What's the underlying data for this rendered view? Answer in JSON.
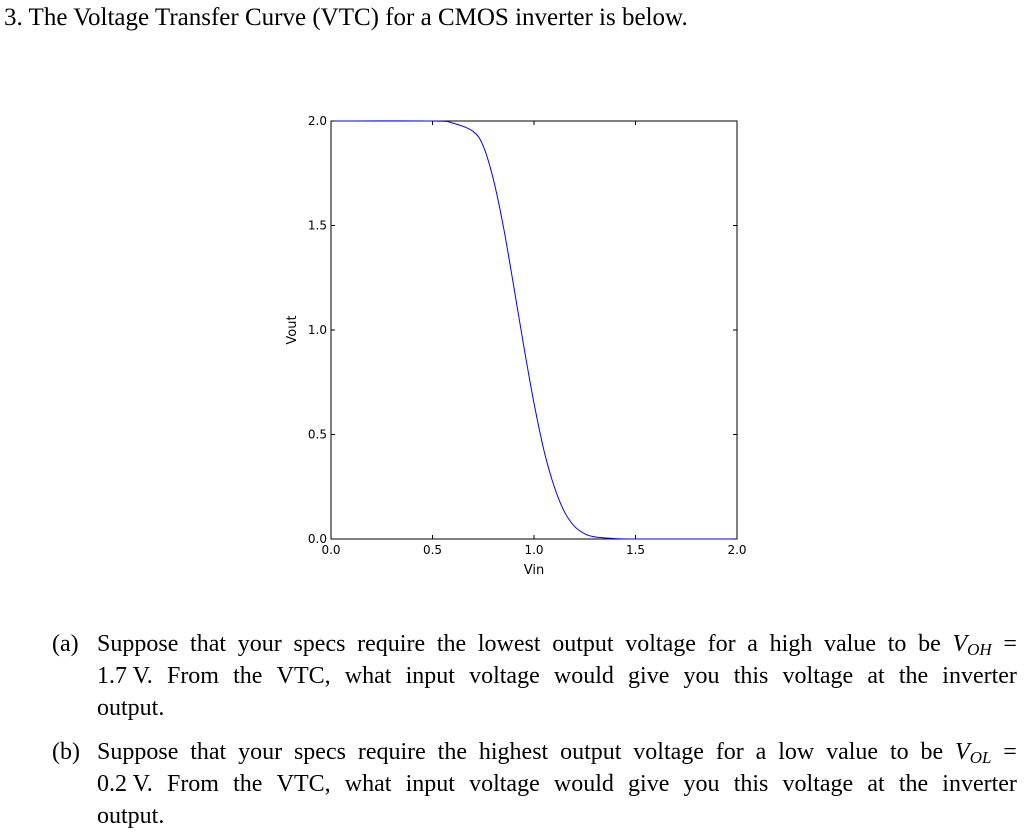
{
  "heading": "3. The Voltage Transfer Curve (VTC) for a CMOS inverter is below.",
  "chart_data": {
    "type": "line",
    "title": "",
    "xlabel": "Vin",
    "ylabel": "Vout",
    "xlim": [
      0.0,
      2.0
    ],
    "ylim": [
      0.0,
      2.0
    ],
    "xticks": [
      "0.0",
      "0.5",
      "1.0",
      "1.5",
      "2.0"
    ],
    "yticks": [
      "0.0",
      "0.5",
      "1.0",
      "1.5",
      "2.0"
    ],
    "grid": false,
    "legend": "none",
    "line_color": "#0000ff",
    "series": [
      {
        "x": [
          0.0,
          0.5,
          0.6,
          0.7,
          0.75,
          0.8,
          0.85,
          0.9,
          0.95,
          1.0,
          1.05,
          1.1,
          1.15,
          1.2,
          1.25,
          1.3,
          1.4,
          1.5,
          2.0
        ],
        "y": [
          2.0,
          2.0,
          1.99,
          1.95,
          1.88,
          1.72,
          1.49,
          1.21,
          0.92,
          0.65,
          0.42,
          0.25,
          0.13,
          0.06,
          0.025,
          0.01,
          0.002,
          0.0,
          0.0
        ]
      }
    ]
  },
  "questions": [
    {
      "label": "(a)",
      "line1": [
        "Suppose",
        "that",
        "your",
        "specs",
        "require",
        "the",
        "lowest",
        "output",
        "voltage",
        "for",
        "a",
        "high",
        "value",
        "to",
        "be"
      ],
      "var_base": "V",
      "var_sub": "OH",
      "eq": "=",
      "value": "1.7 V.",
      "line2_rest": [
        "From",
        "the",
        "VTC,",
        "what",
        "input",
        "voltage",
        "would",
        "give",
        "you",
        "this",
        "voltage",
        "at",
        "the",
        "inverter"
      ],
      "line3": "output."
    },
    {
      "label": "(b)",
      "line1": [
        "Suppose",
        "that",
        "your",
        "specs",
        "require",
        "the",
        "highest",
        "output",
        "voltage",
        "for",
        "a",
        "low",
        "value",
        "to",
        "be"
      ],
      "var_base": "V",
      "var_sub": "OL",
      "eq": "=",
      "value": "0.2 V.",
      "line2_rest": [
        "From",
        "the",
        "VTC,",
        "what",
        "input",
        "voltage",
        "would",
        "give",
        "you",
        "this",
        "voltage",
        "at",
        "the",
        "inverter"
      ],
      "line3": "output."
    }
  ]
}
